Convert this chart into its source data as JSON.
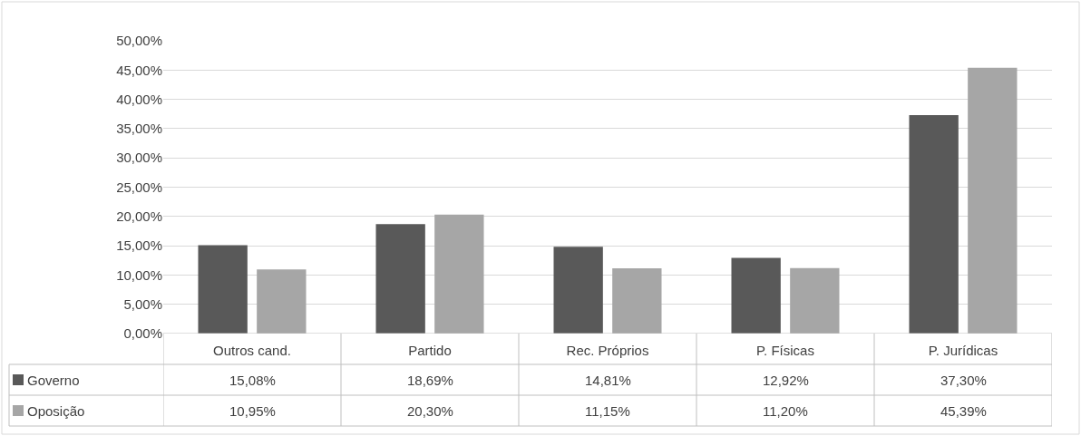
{
  "chart_data": {
    "type": "bar",
    "categories": [
      "Outros cand.",
      "Partido",
      "Rec. Próprios",
      "P. Físicas",
      "P. Jurídicas"
    ],
    "series": [
      {
        "name": "Governo",
        "color": "#595959",
        "values": [
          15.08,
          18.69,
          14.81,
          12.92,
          37.3
        ],
        "value_labels": [
          "15,08%",
          "18,69%",
          "14,81%",
          "12,92%",
          "37,30%"
        ]
      },
      {
        "name": "Oposição",
        "color": "#a6a6a6",
        "values": [
          10.95,
          20.3,
          11.15,
          11.2,
          45.39
        ],
        "value_labels": [
          "10,95%",
          "20,30%",
          "11,15%",
          "11,20%",
          "45,39%"
        ]
      }
    ],
    "ylim": [
      0,
      50
    ],
    "yticks": [
      {
        "value": 0,
        "label": "0,00%"
      },
      {
        "value": 5,
        "label": "5,00%"
      },
      {
        "value": 10,
        "label": "10,00%"
      },
      {
        "value": 15,
        "label": "15,00%"
      },
      {
        "value": 20,
        "label": "20,00%"
      },
      {
        "value": 25,
        "label": "25,00%"
      },
      {
        "value": 30,
        "label": "30,00%"
      },
      {
        "value": 35,
        "label": "35,00%"
      },
      {
        "value": 40,
        "label": "40,00%"
      },
      {
        "value": 45,
        "label": "45,00%"
      },
      {
        "value": 50,
        "label": "50,00%"
      }
    ],
    "grid": "y",
    "legend": "bottom left"
  }
}
